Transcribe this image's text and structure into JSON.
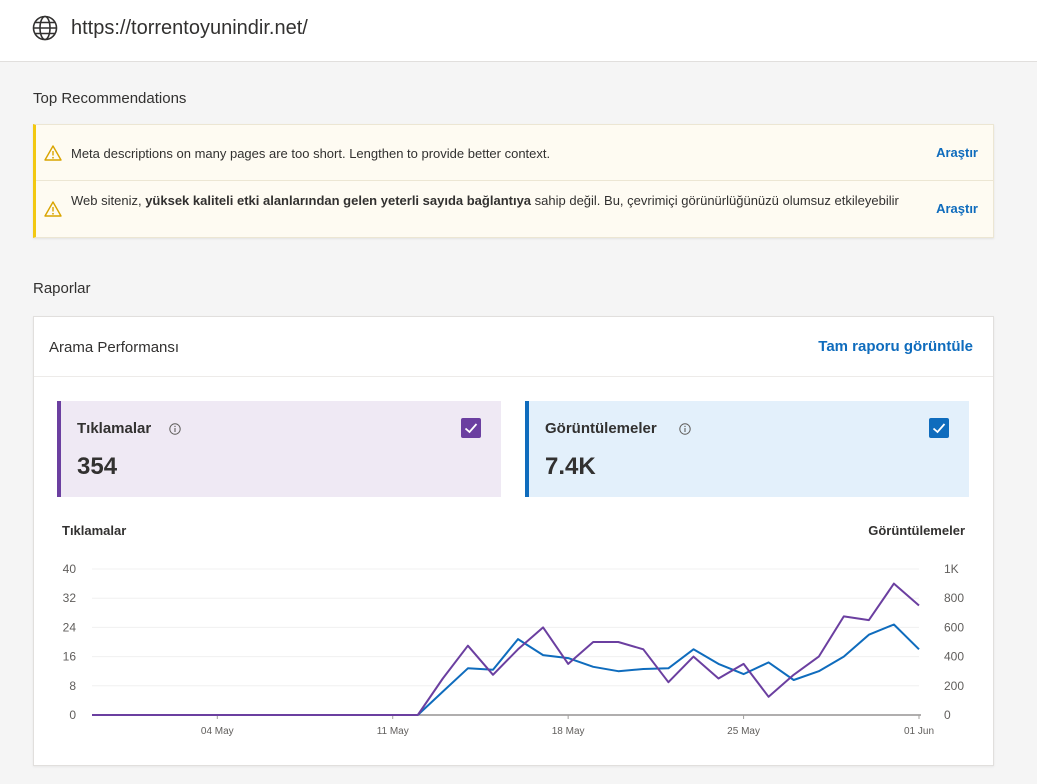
{
  "site": {
    "url": "https://torrentoyunindir.net/",
    "icon": "globe-icon"
  },
  "recommendations": {
    "title": "Top Recommendations",
    "items": [
      {
        "text": "Meta descriptions on many pages are too short. Lengthen to provide better context.",
        "link": "Araştır",
        "icon": "warning-icon"
      },
      {
        "text_before": "Web siteniz, ",
        "text_bold": "yüksek kaliteli etki alanlarından gelen yeterli sayıda bağlantıya",
        "text_after": " sahip değil. Bu, çevrimiçi görünürlüğünüzü olumsuz etkileyebilir",
        "link": "Araştır",
        "icon": "warning-icon"
      }
    ]
  },
  "reports": {
    "title": "Raporlar",
    "card_title": "Arama Performansı",
    "full_report_link": "Tam raporu görüntüle",
    "metrics": [
      {
        "label": "Tıklamalar",
        "value": "354",
        "checked": true,
        "color": "#6b3fa0"
      },
      {
        "label": "Görüntülemeler",
        "value": "7.4K",
        "checked": true,
        "color": "#0f6cbd"
      }
    ],
    "left_axis_title": "Tıklamalar",
    "right_axis_title": "Görüntülemeler"
  },
  "chart_data": {
    "type": "line",
    "x_tick_labels": [
      "04 May",
      "11 May",
      "18 May",
      "25 May",
      "01 Jun"
    ],
    "x_tick_indices": [
      5,
      12,
      19,
      26,
      33
    ],
    "y_left": {
      "ticks": [
        0,
        8,
        16,
        24,
        32,
        40
      ],
      "ylim": [
        0,
        40
      ]
    },
    "y_right": {
      "ticks": [
        "0",
        "200",
        "400",
        "600",
        "800",
        "1K"
      ],
      "ylim": [
        0,
        1000
      ]
    },
    "grid": true,
    "series": [
      {
        "name": "Tıklamalar",
        "axis": "left",
        "color": "#6b3fa0",
        "values": [
          0,
          0,
          0,
          0,
          0,
          0,
          0,
          0,
          0,
          0,
          0,
          0,
          0,
          0,
          10,
          19,
          11,
          18,
          24,
          14,
          20,
          20,
          18,
          9,
          16,
          10,
          14,
          5,
          11,
          16,
          27,
          26,
          36,
          30
        ]
      },
      {
        "name": "Görüntülemeler",
        "axis": "right",
        "color": "#0f6cbd",
        "values": [
          0,
          0,
          0,
          0,
          0,
          0,
          0,
          0,
          0,
          0,
          0,
          0,
          0,
          0,
          160,
          320,
          310,
          520,
          410,
          390,
          330,
          300,
          315,
          320,
          450,
          350,
          280,
          360,
          240,
          300,
          400,
          550,
          620,
          450
        ]
      }
    ]
  }
}
